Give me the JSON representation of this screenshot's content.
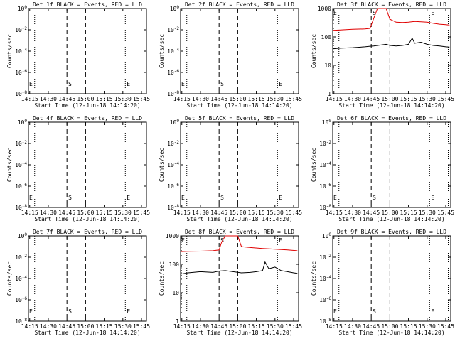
{
  "colors": {
    "events": "#000000",
    "lld": "#e00000",
    "axes": "#000000",
    "background": "#ffffff"
  },
  "common": {
    "ylabel": "Counts/sec",
    "xlabel": "Start Time (12-Jun-18 14:14:20)",
    "xticks": [
      "14:15",
      "14:30",
      "14:45",
      "15:00",
      "15:15",
      "15:30",
      "15:45"
    ],
    "log_ticks_tiny": [
      "10^-8",
      "10^-6",
      "10^-4",
      "10^-2",
      "10^0"
    ],
    "log_ticks_real": [
      "1",
      "10",
      "100",
      "1000"
    ]
  },
  "chart_data": [
    {
      "type": "line",
      "title": "Det 1f BLACK = Events, RED = LLD",
      "scale": "tiny",
      "markers": {
        "S": "S",
        "E": "E"
      },
      "has_data": false,
      "series": []
    },
    {
      "type": "line",
      "title": "Det 2f BLACK = Events, RED = LLD",
      "scale": "tiny",
      "markers": {
        "S": "S",
        "E": "E"
      },
      "has_data": false,
      "series": []
    },
    {
      "type": "line",
      "title": "Det 3f BLACK = Events, RED = LLD",
      "scale": "real",
      "markers": {
        "S": "S",
        "E": "E"
      },
      "has_data": true,
      "series": [
        {
          "color": "lld",
          "x": [
            "14:14",
            "14:20",
            "14:30",
            "14:40",
            "14:44",
            "14:47",
            "14:50",
            "14:54",
            "14:57",
            "15:00",
            "15:05",
            "15:10",
            "15:15",
            "15:20",
            "15:25",
            "15:30",
            "15:35",
            "15:40",
            "15:45",
            "15:48"
          ],
          "y": [
            170,
            175,
            185,
            190,
            200,
            450,
            1000,
            1000,
            1000,
            420,
            330,
            320,
            330,
            350,
            340,
            330,
            300,
            280,
            270,
            260
          ]
        },
        {
          "color": "events",
          "x": [
            "14:14",
            "14:20",
            "14:30",
            "14:40",
            "14:44",
            "14:47",
            "14:57",
            "15:00",
            "15:05",
            "15:10",
            "15:15",
            "15:18",
            "15:20",
            "15:25",
            "15:30",
            "15:35",
            "15:40",
            "15:45",
            "15:48"
          ],
          "y": [
            38,
            40,
            42,
            45,
            47,
            48,
            55,
            50,
            48,
            50,
            55,
            90,
            60,
            65,
            55,
            50,
            48,
            45,
            44
          ]
        }
      ]
    },
    {
      "type": "line",
      "title": "Det 4f BLACK = Events, RED = LLD",
      "scale": "tiny",
      "markers": {
        "S": "S",
        "E": "E"
      },
      "has_data": false,
      "series": []
    },
    {
      "type": "line",
      "title": "Det 5f BLACK = Events, RED = LLD",
      "scale": "tiny",
      "markers": {
        "S": "S",
        "E": "E"
      },
      "has_data": false,
      "series": []
    },
    {
      "type": "line",
      "title": "Det 6f BLACK = Events, RED = LLD",
      "scale": "tiny",
      "markers": {
        "S": "S",
        "E": "E"
      },
      "has_data": false,
      "series": []
    },
    {
      "type": "line",
      "title": "Det 7f BLACK = Events, RED = LLD",
      "scale": "tiny",
      "markers": {
        "S": "S",
        "E": "E"
      },
      "has_data": false,
      "series": []
    },
    {
      "type": "line",
      "title": "Det 8f BLACK = Events, RED = LLD",
      "scale": "real",
      "markers": {
        "S": "S",
        "E": "E"
      },
      "has_data": true,
      "series": [
        {
          "color": "lld",
          "x": [
            "14:14",
            "14:20",
            "14:30",
            "14:40",
            "14:45",
            "14:47",
            "14:50",
            "14:55",
            "15:00",
            "15:03",
            "15:10",
            "15:20",
            "15:30",
            "15:40",
            "15:48"
          ],
          "y": [
            280,
            285,
            290,
            300,
            320,
            600,
            1000,
            1000,
            1000,
            420,
            390,
            360,
            340,
            320,
            300
          ]
        },
        {
          "color": "events",
          "x": [
            "14:14",
            "14:20",
            "14:30",
            "14:40",
            "14:45",
            "14:50",
            "15:03",
            "15:10",
            "15:15",
            "15:20",
            "15:22",
            "15:25",
            "15:30",
            "15:35",
            "15:40",
            "15:45",
            "15:48"
          ],
          "y": [
            45,
            50,
            55,
            52,
            58,
            60,
            50,
            52,
            55,
            60,
            120,
            70,
            80,
            60,
            55,
            50,
            48
          ]
        }
      ]
    },
    {
      "type": "line",
      "title": "Det 9f BLACK = Events, RED = LLD",
      "scale": "tiny",
      "markers": {
        "S": "S",
        "E": "E"
      },
      "has_data": false,
      "series": []
    }
  ]
}
